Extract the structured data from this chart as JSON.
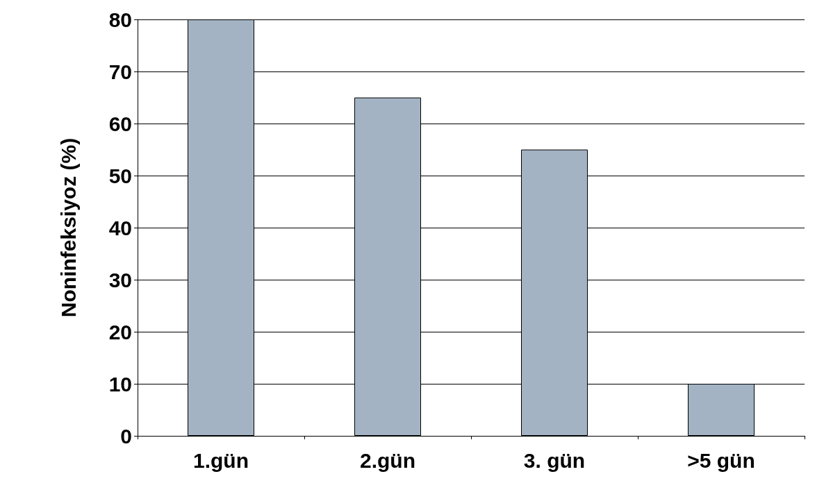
{
  "chart_data": {
    "type": "bar",
    "ylabel": "Noninfeksiyoz (%)",
    "categories": [
      "1.gün",
      "2.gün",
      "3. gün",
      ">5 gün"
    ],
    "values": [
      80,
      65,
      55,
      10
    ],
    "color": "#a3b3c3",
    "ylim": [
      0,
      80
    ],
    "yticks": [
      0,
      10,
      20,
      30,
      40,
      50,
      60,
      70,
      80
    ],
    "grid": "y"
  }
}
